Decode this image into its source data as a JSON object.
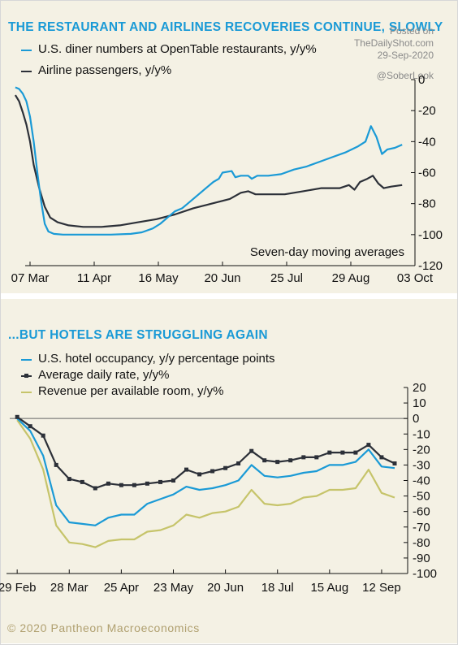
{
  "top": {
    "title": "THE RESTAURANT AND AIRLINES RECOVERIES CONTINUE, SLOWLY",
    "watermark_lines": [
      "Posted on",
      "TheDailyShot.com",
      "29-Sep-2020",
      "@SoberLook"
    ],
    "annotation": "Seven-day moving averages"
  },
  "bottom": {
    "title": "...BUT HOTELS ARE STRUGGLING AGAIN"
  },
  "footer": "© 2020 Pantheon Macroeconomics",
  "colors": {
    "title": "#1a9ad6",
    "blue": "#1a9ad6",
    "dark": "#2c3038",
    "olive": "#c6c46a",
    "panel_bg": "#f4f1e4"
  },
  "chart_data": [
    {
      "type": "line",
      "title": "THE RESTAURANT AND AIRLINES RECOVERIES CONTINUE, SLOWLY",
      "xlabel": "",
      "ylabel": "",
      "x_tick_labels": [
        "07 Mar",
        "11 Apr",
        "16 May",
        "20 Jun",
        "25 Jul",
        "29 Aug",
        "03 Oct"
      ],
      "x_tick_dates": [
        "2020-03-07",
        "2020-04-11",
        "2020-05-16",
        "2020-06-20",
        "2020-07-25",
        "2020-08-29",
        "2020-10-03"
      ],
      "xlim": [
        "2020-03-07",
        "2020-10-03"
      ],
      "ylim": [
        -120,
        0
      ],
      "y_ticks": [
        0,
        -20,
        -40,
        -60,
        -80,
        -100,
        -120
      ],
      "y_axis_side": "right",
      "grid": false,
      "legend_placement": "top-left",
      "series": [
        {
          "name": "U.S. diner numbers at OpenTable restaurants, y/y%",
          "color": "#1a9ad6",
          "points": [
            [
              "2020-02-28",
              -5
            ],
            [
              "2020-03-01",
              -6
            ],
            [
              "2020-03-03",
              -9
            ],
            [
              "2020-03-05",
              -14
            ],
            [
              "2020-03-07",
              -24
            ],
            [
              "2020-03-09",
              -40
            ],
            [
              "2020-03-11",
              -60
            ],
            [
              "2020-03-13",
              -78
            ],
            [
              "2020-03-15",
              -93
            ],
            [
              "2020-03-17",
              -98
            ],
            [
              "2020-03-20",
              -99.5
            ],
            [
              "2020-03-25",
              -100
            ],
            [
              "2020-04-05",
              -100
            ],
            [
              "2020-04-20",
              -100
            ],
            [
              "2020-05-01",
              -99.5
            ],
            [
              "2020-05-07",
              -98.5
            ],
            [
              "2020-05-13",
              -96
            ],
            [
              "2020-05-17",
              -93
            ],
            [
              "2020-05-21",
              -89
            ],
            [
              "2020-05-25",
              -85
            ],
            [
              "2020-05-29",
              -83
            ],
            [
              "2020-06-01",
              -80
            ],
            [
              "2020-06-04",
              -77
            ],
            [
              "2020-06-08",
              -73
            ],
            [
              "2020-06-12",
              -69
            ],
            [
              "2020-06-15",
              -66
            ],
            [
              "2020-06-18",
              -64
            ],
            [
              "2020-06-20",
              -60
            ],
            [
              "2020-06-25",
              -59
            ],
            [
              "2020-06-27",
              -63
            ],
            [
              "2020-06-30",
              -62
            ],
            [
              "2020-07-04",
              -62
            ],
            [
              "2020-07-06",
              -64
            ],
            [
              "2020-07-09",
              -62
            ],
            [
              "2020-07-15",
              -62
            ],
            [
              "2020-07-22",
              -61
            ],
            [
              "2020-07-29",
              -58
            ],
            [
              "2020-08-05",
              -56
            ],
            [
              "2020-08-12",
              -53
            ],
            [
              "2020-08-19",
              -50
            ],
            [
              "2020-08-26",
              -47
            ],
            [
              "2020-09-02",
              -43
            ],
            [
              "2020-09-06",
              -40
            ],
            [
              "2020-09-09",
              -30
            ],
            [
              "2020-09-12",
              -37
            ],
            [
              "2020-09-15",
              -48
            ],
            [
              "2020-09-18",
              -45
            ],
            [
              "2020-09-22",
              -44
            ],
            [
              "2020-09-26",
              -42
            ]
          ]
        },
        {
          "name": "Airline passengers, y/y%",
          "color": "#2c3038",
          "points": [
            [
              "2020-02-28",
              -10
            ],
            [
              "2020-03-01",
              -14
            ],
            [
              "2020-03-03",
              -21
            ],
            [
              "2020-03-05",
              -29
            ],
            [
              "2020-03-07",
              -40
            ],
            [
              "2020-03-09",
              -55
            ],
            [
              "2020-03-12",
              -70
            ],
            [
              "2020-03-15",
              -82
            ],
            [
              "2020-03-18",
              -89
            ],
            [
              "2020-03-22",
              -92
            ],
            [
              "2020-03-28",
              -94
            ],
            [
              "2020-04-05",
              -95
            ],
            [
              "2020-04-15",
              -95
            ],
            [
              "2020-04-25",
              -94
            ],
            [
              "2020-05-05",
              -92
            ],
            [
              "2020-05-15",
              -90
            ],
            [
              "2020-05-25",
              -87
            ],
            [
              "2020-06-04",
              -83
            ],
            [
              "2020-06-14",
              -80
            ],
            [
              "2020-06-24",
              -77
            ],
            [
              "2020-06-30",
              -73
            ],
            [
              "2020-07-04",
              -72
            ],
            [
              "2020-07-08",
              -74
            ],
            [
              "2020-07-14",
              -74
            ],
            [
              "2020-07-24",
              -74
            ],
            [
              "2020-08-03",
              -72
            ],
            [
              "2020-08-13",
              -70
            ],
            [
              "2020-08-23",
              -70
            ],
            [
              "2020-08-28",
              -68
            ],
            [
              "2020-08-31",
              -71
            ],
            [
              "2020-09-03",
              -66
            ],
            [
              "2020-09-07",
              -64
            ],
            [
              "2020-09-10",
              -62
            ],
            [
              "2020-09-13",
              -67
            ],
            [
              "2020-09-16",
              -70
            ],
            [
              "2020-09-20",
              -69
            ],
            [
              "2020-09-26",
              -68
            ]
          ]
        }
      ],
      "annotations": [
        "Seven-day moving averages"
      ]
    },
    {
      "type": "line",
      "title": "...BUT HOTELS ARE STRUGGLING AGAIN",
      "xlabel": "",
      "ylabel": "",
      "x_tick_labels": [
        "29 Feb",
        "28 Mar",
        "25 Apr",
        "23 May",
        "20 Jun",
        "18 Jul",
        "15 Aug",
        "12 Sep"
      ],
      "x_tick_dates": [
        "2020-02-29",
        "2020-03-28",
        "2020-04-25",
        "2020-05-23",
        "2020-06-20",
        "2020-07-18",
        "2020-08-15",
        "2020-09-12"
      ],
      "xlim": [
        "2020-02-25",
        "2020-09-26"
      ],
      "ylim": [
        -100,
        20
      ],
      "y_ticks": [
        20,
        10,
        0,
        -10,
        -20,
        -30,
        -40,
        -50,
        -60,
        -70,
        -80,
        -90,
        -100
      ],
      "y_axis_side": "right",
      "zero_line": true,
      "grid": false,
      "legend_placement": "top-left",
      "dates": [
        "2020-02-29",
        "2020-03-07",
        "2020-03-14",
        "2020-03-21",
        "2020-03-28",
        "2020-04-04",
        "2020-04-11",
        "2020-04-18",
        "2020-04-25",
        "2020-05-02",
        "2020-05-09",
        "2020-05-16",
        "2020-05-23",
        "2020-05-30",
        "2020-06-06",
        "2020-06-13",
        "2020-06-20",
        "2020-06-27",
        "2020-07-04",
        "2020-07-11",
        "2020-07-18",
        "2020-07-25",
        "2020-08-01",
        "2020-08-08",
        "2020-08-15",
        "2020-08-22",
        "2020-08-29",
        "2020-09-05",
        "2020-09-12",
        "2020-09-19"
      ],
      "series": [
        {
          "name": "U.S. hotel occupancy, y/y percentage points",
          "color": "#1a9ad6",
          "values": [
            0,
            -8,
            -24,
            -56,
            -67,
            -68,
            -69,
            -64,
            -62,
            -62,
            -55,
            -52,
            -49,
            -44,
            -46,
            -45,
            -43,
            -40,
            -30,
            -37,
            -38,
            -37,
            -35,
            -34,
            -30,
            -30,
            -28,
            -20,
            -31,
            -32
          ]
        },
        {
          "name": "Average daily rate, y/y%",
          "color": "#2c3038",
          "values": [
            1,
            -5,
            -11,
            -30,
            -39,
            -41,
            -45,
            -42,
            -43,
            -43,
            -42,
            -41,
            -40,
            -33,
            -36,
            -34,
            -32,
            -29,
            -21,
            -27,
            -28,
            -27,
            -25,
            -25,
            -22,
            -22,
            -22,
            -17,
            -25,
            -29
          ]
        },
        {
          "name": "Revenue per available room, y/y%",
          "color": "#c6c46a",
          "values": [
            -1,
            -13,
            -33,
            -69,
            -80,
            -81,
            -83,
            -79,
            -78,
            -78,
            -73,
            -72,
            -69,
            -62,
            -64,
            -61,
            -60,
            -57,
            -46,
            -55,
            -56,
            -55,
            -51,
            -50,
            -46,
            -46,
            -45,
            -33,
            -48,
            -51
          ]
        }
      ]
    }
  ]
}
